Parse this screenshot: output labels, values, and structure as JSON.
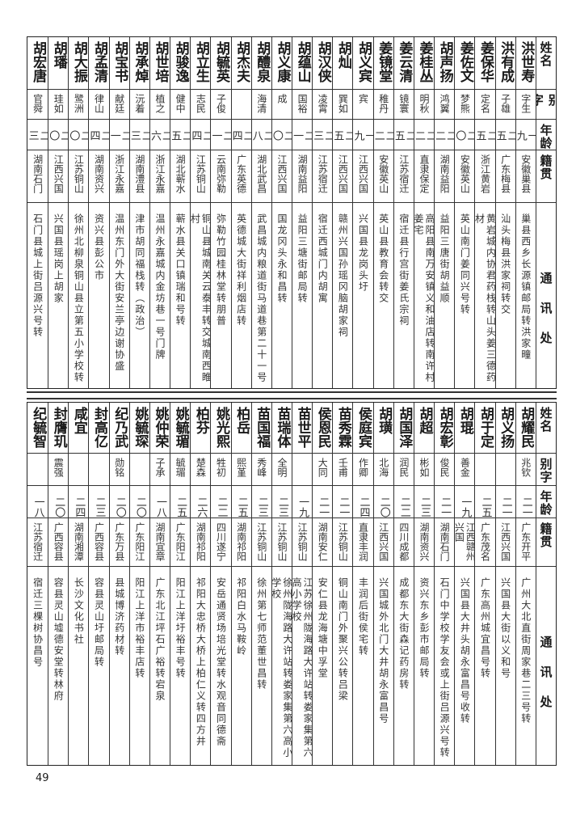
{
  "header": {
    "name": "姓名",
    "alias": "别字",
    "age": "年龄",
    "origin": "籍贯",
    "address": "通讯处"
  },
  "top": [
    {
      "name": "洪世寿",
      "alias": "字生",
      "age": "一九",
      "origin": "安徽巢县",
      "address": "巢县西乡长源镇邮局转洪家疃"
    },
    {
      "name": "洪有成",
      "alias": "子雄",
      "age": "二五",
      "origin": "广东梅县",
      "address": "汕头梅县洪家祠转交"
    },
    {
      "name": "姜保华",
      "alias": "定名",
      "age": "二五",
      "origin": "浙江黄岩",
      "address": "黄岩城内协君药栈转山头姜三德药材"
    },
    {
      "name": "姜佐文",
      "alias": "梦熊",
      "age": "二〇",
      "origin": "安徽英山",
      "address": "英山南门姜同兴号转"
    },
    {
      "name": "胡声扬",
      "alias": "鸿翼",
      "age": "二二",
      "origin": "湖南益阳",
      "address": "益阳三唐街胡益顺"
    },
    {
      "name": "姜桂丛",
      "alias": "明秋",
      "age": "二二",
      "origin": "直隶保定",
      "address": "高阳县南万安镇义和油店转南许村姜宅"
    },
    {
      "name": "姜云清",
      "alias": "镜寰",
      "age": "二五",
      "origin": "江苏宿迁",
      "address": "宿迁县行宫街姜氏宗祠"
    },
    {
      "name": "姜镜堂",
      "alias": "稚丹",
      "age": "二二",
      "origin": "安徽英山",
      "address": "英山县教育会转交"
    },
    {
      "name": "胡义宾",
      "alias": "宾",
      "age": "一九",
      "origin": "江西兴国",
      "address": "兴国县龙岗头圩"
    },
    {
      "name": "胡灿",
      "alias": "巽如",
      "age": "二五",
      "origin": "江西兴国",
      "address": "赣州兴国孙瑶冈脑胡家祠"
    },
    {
      "name": "胡汉侠",
      "alias": "凌霄",
      "age": "二三",
      "origin": "江苏宿迁",
      "address": "宿迁西城门内胡寓"
    },
    {
      "name": "胡蕴山",
      "alias": "国裕",
      "age": "二一",
      "origin": "湖南益阳",
      "address": "益阳三塘街邮局转"
    },
    {
      "name": "胡义康",
      "alias": "成",
      "age": "二〇",
      "origin": "江西兴国",
      "address": "国龙冈头永和昌转"
    },
    {
      "name": "胡醴泉",
      "alias": "海清",
      "age": "二八",
      "origin": "湖北武昌",
      "address": "武昌城内粮道街马道巷第二十一号"
    },
    {
      "name": "胡杰夫",
      "alias": "",
      "age": "二四",
      "origin": "广东英德",
      "address": "英德城大街祥利烟店转"
    },
    {
      "name": "胡毓英",
      "alias": "子俊",
      "age": "二一",
      "origin": "云南弥勒",
      "address": "弥勒竹园桂林堂转朋普"
    },
    {
      "name": "胡立生",
      "alias": "志民",
      "age": "二四",
      "origin": "江苏铜山",
      "address": "铜山县城南关云泰丰转交城南西睢村"
    },
    {
      "name": "胡骏逸",
      "alias": "健中",
      "age": "二五",
      "origin": "湖北蕲水",
      "address": "蕲水县关口镇瑞和号转"
    },
    {
      "name": "胡世培",
      "alias": "植之",
      "age": "二六",
      "origin": "浙江永嘉",
      "address": "温州永嘉城内金坊巷一号门牌"
    },
    {
      "name": "胡承焯",
      "alias": "沅着",
      "age": "二三",
      "origin": "湖南澧县",
      "address": "津市胡同福栈转（政治）"
    },
    {
      "name": "胡宝书",
      "alias": "献廷",
      "age": "二一",
      "origin": "浙江永嘉",
      "address": "温州东门外大街安兰亭边谢协盛"
    },
    {
      "name": "胡孟清",
      "alias": "律山",
      "age": "二四",
      "origin": "湖南资兴",
      "address": "资兴县彭公市"
    },
    {
      "name": "胡大振",
      "alias": "鹭洲",
      "age": "二〇",
      "origin": "江苏铜山",
      "address": "徐州北柳泉铜山县立第五小学校转"
    },
    {
      "name": "胡璠",
      "alias": "珪如",
      "age": "二〇",
      "origin": "江西兴国",
      "address": "兴国县瑶岗上胡家"
    },
    {
      "name": "胡宏唐",
      "alias": "官舜",
      "age": "二三",
      "origin": "湖南石门",
      "address": "石门县城上街吕源兴号转"
    }
  ],
  "bottom": [
    {
      "name": "胡耀民",
      "alias": "兆钦",
      "age": "二一",
      "origin": "广东开平",
      "address": "广州大北直街周家巷二三号转"
    },
    {
      "name": "胡义扬",
      "alias": "",
      "age": "二一",
      "origin": "江西兴国",
      "address": "兴国县大街以义和号"
    },
    {
      "name": "胡于定",
      "alias": "",
      "age": "二五",
      "origin": "广东茂名",
      "address": "广东高州城宜昌号转"
    },
    {
      "name": "胡琨",
      "alias": "善金",
      "age": "一九",
      "origin": "江西赣州兴国",
      "address": "兴国县大井头胡永富昌号收转"
    },
    {
      "name": "胡宏彰",
      "alias": "俊民",
      "age": "二一",
      "origin": "湖南石门",
      "address": "石门中学校学友会或上街吕源兴号转"
    },
    {
      "name": "胡超",
      "alias": "彬如",
      "age": "二三",
      "origin": "湖南资兴",
      "address": "资兴东乡彭市邮局转"
    },
    {
      "name": "胡国泽",
      "alias": "润民",
      "age": "二二",
      "origin": "四川成都",
      "address": "成都东大街森记药房转"
    },
    {
      "name": "胡璜",
      "alias": "北海",
      "age": "二〇",
      "origin": "江西兴国",
      "address": "兴国城外北门大井胡永富昌号"
    },
    {
      "name": "侯庭宾",
      "alias": "作卿",
      "age": "二四",
      "origin": "直隶丰润",
      "address": "丰润后街侯宅转"
    },
    {
      "name": "苗秀霖",
      "alias": "壬甫",
      "age": "二一",
      "origin": "江苏铜山",
      "address": "铜山南门外聚兴公转吕梁"
    },
    {
      "name": "侯恩民",
      "alias": "大同",
      "age": "二一",
      "origin": "湖南安仁",
      "address": "安仁县龙海塘中孚堂"
    },
    {
      "name": "苗世平",
      "alias": "",
      "age": "一九",
      "origin": "江苏铜山",
      "address": "江苏徐州陇海路大许站转娄家集第六高小学校"
    },
    {
      "name": "苗瑞体",
      "alias": "全明",
      "age": "二三",
      "origin": "江苏铜山",
      "address": "徐州陇海路大许站转娄家集第六高小学校"
    },
    {
      "name": "苗国福",
      "alias": "秀峰",
      "age": "二三",
      "origin": "江苏铜山",
      "address": "徐州第七师范董世昌转"
    },
    {
      "name": "柏岳",
      "alias": "熙堇",
      "age": "二五",
      "origin": "湖南祁阳",
      "address": "祁阳白水马鞍岭"
    },
    {
      "name": "姚光熙",
      "alias": "牲初",
      "age": "二二",
      "origin": "四川遂宁",
      "address": "安岳通贤场培光堂转水观音同德斋"
    },
    {
      "name": "柏芬",
      "alias": "楚森",
      "age": "二六",
      "origin": "湖南祁阳",
      "address": "祁阳大忠桥大桥上柏仁义转四方井"
    },
    {
      "name": "姚毓瑂",
      "alias": "毓瑂",
      "age": "二五",
      "origin": "广东阳江",
      "address": "阳江上洋圩裕丰号转"
    },
    {
      "name": "姚仲荣",
      "alias": "子承",
      "age": "一八",
      "origin": "湖南宜章",
      "address": "广东北江坪石广裕转宕泉"
    },
    {
      "name": "姚毓琛",
      "alias": "",
      "age": "二〇",
      "origin": "广东阳江",
      "address": "阳江上洋市裕丰店转"
    },
    {
      "name": "纪乃武",
      "alias": "勋铭",
      "age": "二〇",
      "origin": "广东万县",
      "address": "县城博济药材转"
    },
    {
      "name": "封高亿",
      "alias": "",
      "age": "二三",
      "origin": "广西容县",
      "address": "容县灵山圩邮局转"
    },
    {
      "name": "咸宜",
      "alias": "",
      "age": "二四",
      "origin": "湖南湘潭",
      "address": "长沙文化书社"
    },
    {
      "name": "封膺玑",
      "alias": "震强",
      "age": "二〇",
      "origin": "广西容县",
      "address": "容县灵山墟德安堂转林府"
    },
    {
      "name": "纪毓智",
      "alias": "",
      "age": "一八",
      "origin": "江苏宿迁",
      "address": "宿迁三棵树协昌号"
    }
  ],
  "page_number": "49"
}
